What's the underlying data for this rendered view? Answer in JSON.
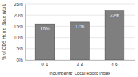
{
  "chart_data": {
    "type": "bar",
    "x_label": "Incumbents' Local Roots Index",
    "y_label": "% of CDS Home State Work",
    "categories": [
      "0-1",
      "2-3",
      "4-6"
    ],
    "values": [
      16,
      17,
      22
    ],
    "value_labels": [
      "16%",
      "17%",
      "22%"
    ],
    "data_labels": true,
    "color": "#7f7f7f",
    "ylim": [
      0,
      25
    ],
    "yticks": [
      {
        "value": 0,
        "label": "0%"
      },
      {
        "value": 5,
        "label": "5%"
      },
      {
        "value": 10,
        "label": "10%"
      },
      {
        "value": 15,
        "label": "15%"
      },
      {
        "value": 20,
        "label": "20%"
      },
      {
        "value": 25,
        "label": "25%"
      }
    ],
    "grid": true
  }
}
